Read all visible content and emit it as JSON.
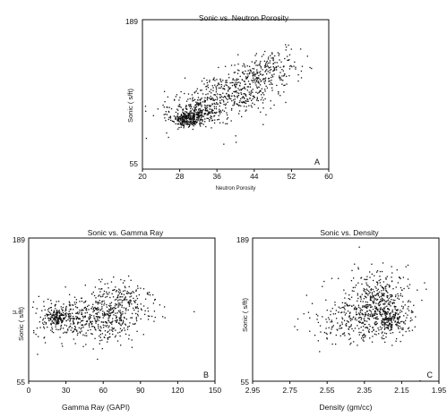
{
  "chart_data": [
    {
      "type": "scatter",
      "title": "Sonic vs. Neutron Porosity",
      "xlabel": "Neutron Porosity",
      "ylabel": "Sonic ( s/ft)",
      "panel_label": "A",
      "xlim": [
        20,
        60
      ],
      "ylim": [
        55,
        189
      ],
      "xticks": [
        "20",
        "28",
        "36",
        "44",
        "52",
        "60"
      ],
      "yticks": [
        "189",
        "55"
      ],
      "clusters": [
        {
          "x": 29.5,
          "y": 100,
          "sx": 1.6,
          "sy": 3.5,
          "n": 230
        },
        {
          "x": 32,
          "y": 106,
          "sx": 2.8,
          "sy": 6,
          "n": 260
        },
        {
          "x": 39,
          "y": 122,
          "sx": 4,
          "sy": 8,
          "n": 280
        },
        {
          "x": 45,
          "y": 138,
          "sx": 3.5,
          "sy": 8,
          "n": 200
        },
        {
          "x": 49,
          "y": 150,
          "sx": 2.5,
          "sy": 7,
          "n": 70
        },
        {
          "x": 34,
          "y": 110,
          "sx": 6,
          "sy": 12,
          "n": 70
        }
      ]
    },
    {
      "type": "scatter",
      "title": "Sonic vs. Gamma Ray",
      "xlabel": "Gamma Ray (GAPI)",
      "ylabel": "Sonic ( s/ft)",
      "ylabel_prefix": "μ",
      "panel_label": "B",
      "xlim": [
        0,
        150
      ],
      "ylim": [
        55,
        189
      ],
      "xticks": [
        "0",
        "30",
        "60",
        "90",
        "120",
        "150"
      ],
      "yticks": [
        "189",
        "55"
      ],
      "clusters": [
        {
          "x": 22,
          "y": 115,
          "sx": 4,
          "sy": 4,
          "n": 130
        },
        {
          "x": 35,
          "y": 115,
          "sx": 16,
          "sy": 9,
          "n": 240
        },
        {
          "x": 62,
          "y": 112,
          "sx": 15,
          "sy": 9,
          "n": 250
        },
        {
          "x": 75,
          "y": 132,
          "sx": 13,
          "sy": 10,
          "n": 160
        },
        {
          "x": 60,
          "y": 112,
          "sx": 28,
          "sy": 18,
          "n": 70
        }
      ]
    },
    {
      "type": "scatter",
      "title": "Sonic vs. Density",
      "xlabel": "Density (gm/cc)",
      "ylabel": "Sonic ( s/ft)",
      "panel_label": "C",
      "xlim": [
        2.95,
        1.95
      ],
      "ylim": [
        55,
        189
      ],
      "xticks": [
        "2.95",
        "2.75",
        "2.55",
        "2.35",
        "2.15",
        "1.95"
      ],
      "yticks": [
        "189",
        "55"
      ],
      "clusters": [
        {
          "x": 2.2,
          "y": 112,
          "sx": 0.04,
          "sy": 6,
          "n": 150
        },
        {
          "x": 2.32,
          "y": 118,
          "sx": 0.09,
          "sy": 12,
          "n": 380
        },
        {
          "x": 2.25,
          "y": 140,
          "sx": 0.07,
          "sy": 12,
          "n": 170
        },
        {
          "x": 2.5,
          "y": 108,
          "sx": 0.08,
          "sy": 10,
          "n": 60
        },
        {
          "x": 2.35,
          "y": 120,
          "sx": 0.18,
          "sy": 22,
          "n": 60
        }
      ]
    }
  ]
}
